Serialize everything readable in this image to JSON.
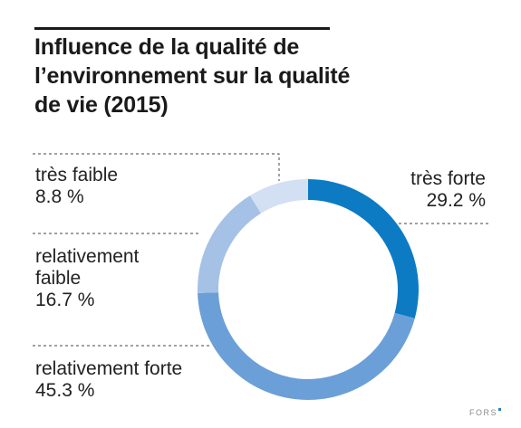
{
  "chart_data": {
    "type": "pie",
    "variant": "donut",
    "title_lines": [
      "Influence de la qualité de",
      "l’environnement sur la qualité",
      "de vie (2015)"
    ],
    "slices": [
      {
        "label": "très forte",
        "value": 29.2,
        "value_label": "29.2 %",
        "color": "#0c7bc4"
      },
      {
        "label": "relativement forte",
        "value": 45.3,
        "value_label": "45.3 %",
        "color": "#6b9fd8"
      },
      {
        "label": "relativement faible",
        "label_lines": [
          "relativement",
          "faible"
        ],
        "value": 16.7,
        "value_label": "16.7 %",
        "color": "#a5c1e6"
      },
      {
        "label": "très faible",
        "value": 8.8,
        "value_label": "8.8 %",
        "color": "#d3dff3"
      }
    ],
    "start_angle": "12 o'clock",
    "direction": "clockwise",
    "legend": "none",
    "labels_leader_lines": "dashed"
  },
  "footer": {
    "logo_text": "FORS"
  }
}
